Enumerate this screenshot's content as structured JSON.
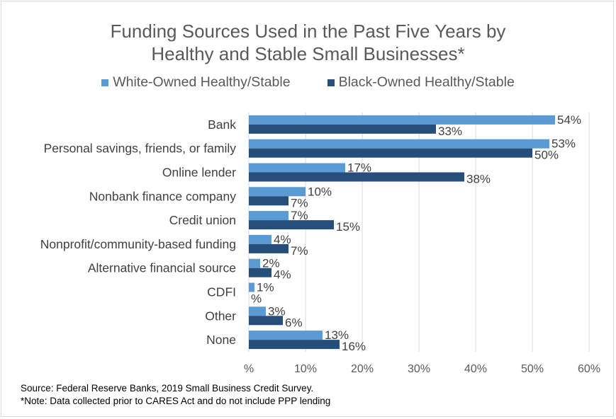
{
  "chart_data": {
    "type": "bar",
    "orientation": "horizontal",
    "title": [
      "Funding Sources Used in the Past Five Years by",
      "Healthy and Stable Small Businesses*"
    ],
    "categories": [
      "Bank",
      "Personal savings, friends, or family",
      "Online lender",
      "Nonbank finance company",
      "Credit union",
      "Nonprofit/community-based funding",
      "Alternative financial source",
      "CDFI",
      "Other",
      "None"
    ],
    "series": [
      {
        "name": "White-Owned Healthy/Stable",
        "color": "#5b9bd5",
        "values": [
          54,
          53,
          17,
          10,
          7,
          4,
          2,
          1,
          3,
          13
        ],
        "labels": [
          "54%",
          "53%",
          "17%",
          "10%",
          "7%",
          "4%",
          "2%",
          "1%",
          "3%",
          "13%"
        ]
      },
      {
        "name": "Black-Owned Healthy/Stable",
        "color": "#264e7a",
        "values": [
          33,
          50,
          38,
          7,
          15,
          7,
          4,
          0,
          6,
          16
        ],
        "labels": [
          "33%",
          "50%",
          "38%",
          "7%",
          "15%",
          "7%",
          "4%",
          "%",
          "6%",
          "16%"
        ]
      }
    ],
    "xlim": [
      0,
      60
    ],
    "xticks": [
      0,
      10,
      20,
      30,
      40,
      50,
      60
    ],
    "xtick_labels": [
      "%",
      "10%",
      "20%",
      "30%",
      "40%",
      "50%",
      "60%"
    ],
    "grid": true,
    "legend_position": "top"
  },
  "notes": {
    "source": "Source: Federal Reserve Banks, 2019 Small Business Credit Survey.",
    "note": "*Note: Data collected prior to CARES Act and do not include PPP lending"
  }
}
